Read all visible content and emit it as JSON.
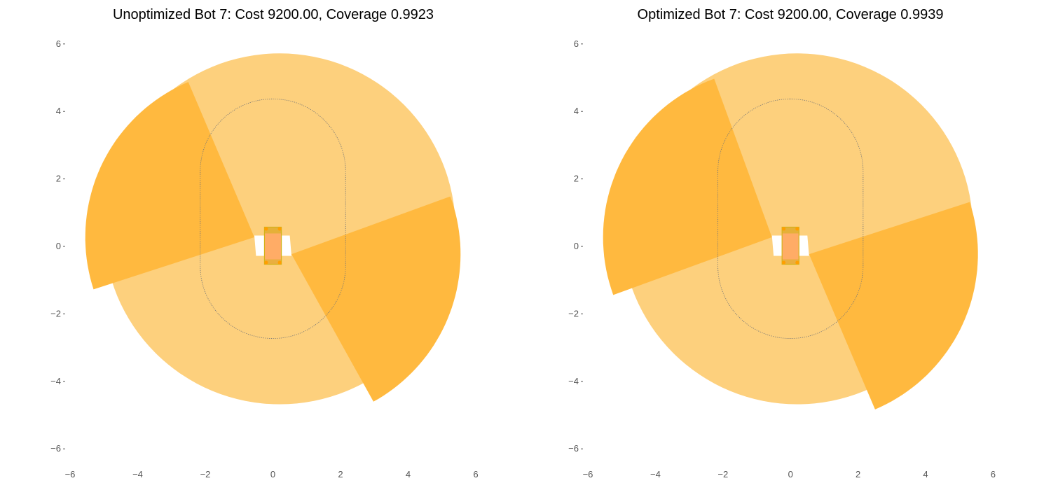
{
  "chart_data": [
    {
      "type": "scatter",
      "title": "Unoptimized Bot 7: Cost 9200.00, Coverage 0.9923",
      "xlim": [
        -6,
        6
      ],
      "ylim": [
        -6,
        6
      ],
      "xticks": [
        "−6",
        "−4",
        "−2",
        "0",
        "2",
        "4",
        "6"
      ],
      "yticks": [
        "6",
        "4",
        "2",
        "0",
        "−2",
        "−4",
        "−6"
      ],
      "grid": false,
      "colors": {
        "coverage": "#fdd07d",
        "sector": "#ffb93f",
        "body": "#ffac66",
        "sensor": "#d4b21a",
        "path": "#777777"
      },
      "coverage_circle": {
        "cx": 0.2,
        "cy": 0.5,
        "r": 5.2
      },
      "robot_body": {
        "x": [
          -0.25,
          0.25
        ],
        "y": [
          -0.55,
          0.55
        ]
      },
      "sector_upper_left": {
        "apex": [
          -0.55,
          0.25
        ],
        "angle_from": 113,
        "angle_to": 198,
        "r": 5.0
      },
      "sector_lower_right": {
        "apex": [
          0.55,
          -0.25
        ],
        "angle_from": -61,
        "angle_to": 20,
        "r": 5.0
      },
      "path_stadium": {
        "x_center": 0,
        "y_center": 0.8,
        "half_width": 2.15,
        "half_height": 3.55
      }
    },
    {
      "type": "scatter",
      "title": "Optimized Bot 7: Cost 9200.00, Coverage 0.9939",
      "xlim": [
        -6,
        6
      ],
      "ylim": [
        -6,
        6
      ],
      "xticks": [
        "−6",
        "−4",
        "−2",
        "0",
        "2",
        "4",
        "6"
      ],
      "yticks": [
        "6",
        "4",
        "2",
        "0",
        "−2",
        "−4",
        "−6"
      ],
      "grid": false,
      "colors": {
        "coverage": "#fdd07d",
        "sector": "#ffb93f",
        "body": "#ffac66",
        "sensor": "#d4b21a",
        "path": "#777777"
      },
      "coverage_circle": {
        "cx": 0.2,
        "cy": 0.5,
        "r": 5.2
      },
      "robot_body": {
        "x": [
          -0.25,
          0.25
        ],
        "y": [
          -0.55,
          0.55
        ]
      },
      "sector_upper_left": {
        "apex": [
          -0.55,
          0.25
        ],
        "angle_from": 110,
        "angle_to": 200,
        "r": 5.0
      },
      "sector_lower_right": {
        "apex": [
          0.55,
          -0.25
        ],
        "angle_from": -67,
        "angle_to": 18,
        "r": 5.0
      },
      "path_stadium": {
        "x_center": 0,
        "y_center": 0.8,
        "half_width": 2.15,
        "half_height": 3.55
      }
    }
  ]
}
